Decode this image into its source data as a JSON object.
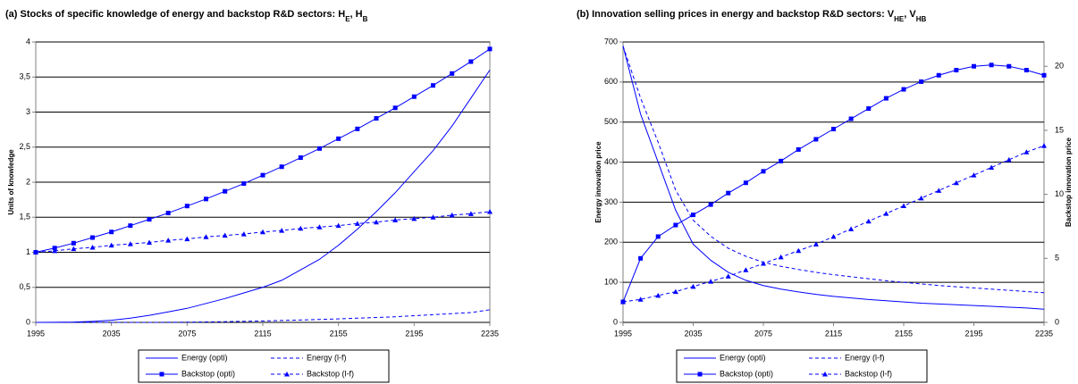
{
  "chart_data": [
    {
      "type": "line",
      "title": [
        "(a) Stocks of specific knowledge of energy and backstop R&D sectors: H",
        "E",
        ", H",
        "B"
      ],
      "ylabel": "Units of knowledge",
      "x": [
        1995,
        2005,
        2015,
        2025,
        2035,
        2045,
        2055,
        2065,
        2075,
        2085,
        2095,
        2105,
        2115,
        2125,
        2135,
        2145,
        2155,
        2165,
        2175,
        2185,
        2195,
        2205,
        2215,
        2225,
        2235
      ],
      "xlim": [
        1995,
        2235
      ],
      "xticks": [
        1995,
        2035,
        2075,
        2115,
        2155,
        2195,
        2235
      ],
      "ylim": [
        0,
        4
      ],
      "yticks": [
        0,
        {
          "value": 0.5,
          "label": "0,5"
        },
        1,
        {
          "value": 1.5,
          "label": "1,5"
        },
        2,
        {
          "value": 2.5,
          "label": "2,5"
        },
        3,
        {
          "value": 3.5,
          "label": "3,5"
        },
        4
      ],
      "grid": true,
      "series": [
        {
          "name": "Energy (opti)",
          "color": "#0000ff",
          "dash": "solid",
          "marker": "none",
          "values": [
            0,
            0.001,
            0.005,
            0.015,
            0.03,
            0.06,
            0.1,
            0.15,
            0.2,
            0.27,
            0.34,
            0.42,
            0.5,
            0.6,
            0.75,
            0.9,
            1.1,
            1.33,
            1.58,
            1.85,
            2.15,
            2.45,
            2.8,
            3.2,
            3.6
          ]
        },
        {
          "name": "Energy (l-f)",
          "color": "#0000ff",
          "dash": "dashed",
          "marker": "none",
          "values": [
            0,
            0,
            0,
            0,
            0,
            0,
            0,
            0.001,
            0.003,
            0.006,
            0.01,
            0.015,
            0.02,
            0.027,
            0.034,
            0.042,
            0.05,
            0.06,
            0.07,
            0.08,
            0.095,
            0.11,
            0.125,
            0.14,
            0.18
          ]
        },
        {
          "name": "Backstop (opti)",
          "color": "#0000ff",
          "dash": "solid",
          "marker": "square",
          "values": [
            1,
            1.06,
            1.13,
            1.21,
            1.29,
            1.38,
            1.47,
            1.56,
            1.66,
            1.76,
            1.87,
            1.98,
            2.1,
            2.22,
            2.35,
            2.48,
            2.62,
            2.76,
            2.91,
            3.06,
            3.22,
            3.38,
            3.55,
            3.72,
            3.9
          ]
        },
        {
          "name": "Backstop (l-f)",
          "color": "#0000ff",
          "dash": "dashed",
          "marker": "triangle",
          "values": [
            1,
            1.02,
            1.05,
            1.07,
            1.1,
            1.12,
            1.14,
            1.17,
            1.19,
            1.22,
            1.24,
            1.26,
            1.29,
            1.31,
            1.34,
            1.36,
            1.38,
            1.41,
            1.43,
            1.46,
            1.48,
            1.5,
            1.53,
            1.55,
            1.58
          ]
        }
      ]
    },
    {
      "type": "line",
      "title": [
        "(b) Innovation selling prices in energy and backstop R&D sectors: V",
        "HE",
        ", V",
        "HB"
      ],
      "ylabel": "Energy innovation price",
      "y2label": "Backstop innovation price",
      "x": [
        1995,
        2005,
        2015,
        2025,
        2035,
        2045,
        2055,
        2065,
        2075,
        2085,
        2095,
        2105,
        2115,
        2125,
        2135,
        2145,
        2155,
        2165,
        2175,
        2185,
        2195,
        2205,
        2215,
        2225,
        2235
      ],
      "xlim": [
        1995,
        2235
      ],
      "xticks": [
        1995,
        2035,
        2075,
        2115,
        2155,
        2195,
        2235
      ],
      "ylim": [
        0,
        700
      ],
      "yticks": [
        0,
        100,
        200,
        300,
        400,
        500,
        600,
        700
      ],
      "y2lim": [
        0,
        21.9
      ],
      "y2ticks": [
        0,
        5,
        10,
        15,
        20
      ],
      "grid": true,
      "series": [
        {
          "name": "Energy (opti)",
          "color": "#0000ff",
          "dash": "solid",
          "marker": "none",
          "values": [
            690,
            520,
            400,
            280,
            195,
            155,
            125,
            105,
            92,
            83,
            76,
            70,
            65,
            61,
            57,
            54,
            51,
            48,
            46,
            44,
            42,
            40,
            38,
            36,
            33
          ]
        },
        {
          "name": "Energy (l-f)",
          "color": "#0000ff",
          "dash": "dashed",
          "marker": "none",
          "values": [
            690,
            560,
            450,
            330,
            255,
            215,
            185,
            165,
            150,
            140,
            132,
            125,
            119,
            114,
            109,
            104,
            100,
            96,
            92,
            89,
            86,
            83,
            80,
            77,
            74
          ]
        },
        {
          "name": "Backstop (opti)",
          "color": "#0000ff",
          "dash": "solid",
          "marker": "square",
          "axis": "y2",
          "values": [
            1.6,
            5.0,
            6.7,
            7.6,
            8.4,
            9.2,
            10.1,
            10.9,
            11.8,
            12.6,
            13.5,
            14.3,
            15.1,
            15.9,
            16.7,
            17.5,
            18.2,
            18.8,
            19.3,
            19.7,
            20.0,
            20.1,
            20.0,
            19.7,
            19.3
          ]
        },
        {
          "name": "Backstop (l-f)",
          "color": "#0000ff",
          "dash": "dashed",
          "marker": "triangle",
          "axis": "y2",
          "values": [
            1.6,
            1.8,
            2.1,
            2.4,
            2.8,
            3.2,
            3.6,
            4.1,
            4.6,
            5.1,
            5.6,
            6.1,
            6.7,
            7.3,
            7.9,
            8.5,
            9.1,
            9.7,
            10.3,
            10.9,
            11.5,
            12.1,
            12.7,
            13.3,
            13.8
          ]
        }
      ]
    }
  ]
}
